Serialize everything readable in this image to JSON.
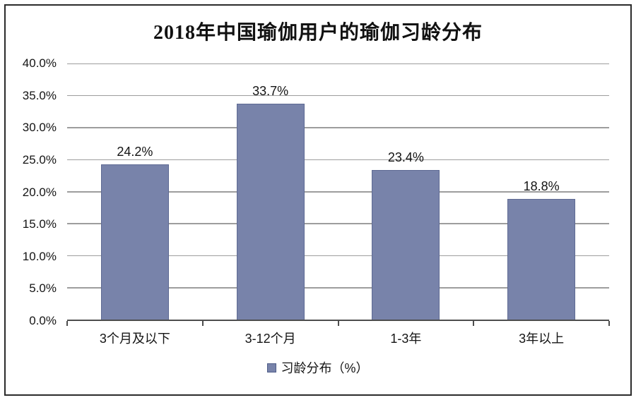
{
  "chart_data": {
    "type": "bar",
    "title": "2018年中国瑜伽用户的瑜伽习龄分布",
    "categories": [
      "3个月及以下",
      "3-12个月",
      "1-3年",
      "3年以上"
    ],
    "values": [
      24.2,
      33.7,
      23.4,
      18.8
    ],
    "value_labels": [
      "24.2%",
      "33.7%",
      "23.4%",
      "18.8%"
    ],
    "series_name": "习龄分布（%）",
    "xlabel": "",
    "ylabel": "",
    "ylim": [
      0,
      40
    ],
    "ytick_step": 5,
    "ytick_labels": [
      "0.0%",
      "5.0%",
      "10.0%",
      "15.0%",
      "20.0%",
      "25.0%",
      "30.0%",
      "35.0%",
      "40.0%"
    ],
    "grid": true,
    "legend_position": "bottom",
    "bar_width_fraction": 0.5,
    "colors": {
      "bar_fill": "#7883AA",
      "bar_border": "#5e6a93",
      "gridline": "#9d9d9d",
      "axis": "#4d4d4d",
      "text": "#141414",
      "frame_border": "#2b2b2b",
      "background": "#ffffff"
    }
  }
}
